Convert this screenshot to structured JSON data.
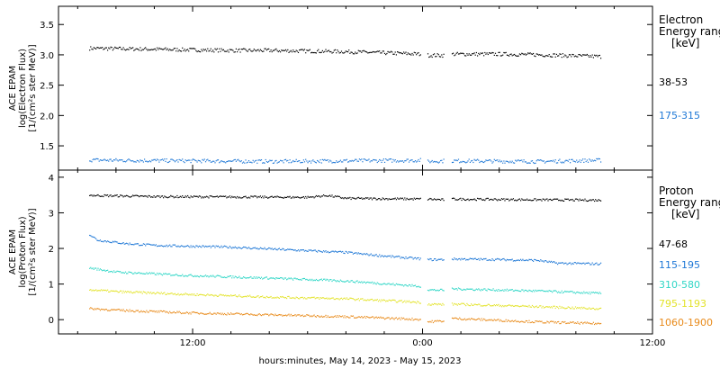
{
  "chart_data": {
    "type": "scatter",
    "xlabel": "hours:minutes, May 14, 2023 - May 15, 2023",
    "x_ticks": [
      "12:00",
      "0:00",
      "12:00"
    ],
    "xlim_hours": [
      5,
      36
    ],
    "x_tick_hours": [
      12,
      24,
      36
    ],
    "gap_hours": [
      [
        23.9,
        24.2
      ],
      [
        25.1,
        25.5
      ]
    ],
    "data_end_hour": 33.3,
    "panels": [
      {
        "id": "electron",
        "ylabel": [
          "ACE EPAM",
          "log(Electron Flux)",
          "[1/(cm²s ster MeV)]"
        ],
        "ylim": [
          1.1,
          3.8
        ],
        "yticks": [
          1.5,
          2.0,
          2.5,
          3.0,
          3.5
        ],
        "ytick_labels": [
          "1.5",
          "2.0",
          "2.5",
          "3.0",
          "3.5"
        ],
        "legend_title": [
          "Electron",
          "Energy range",
          "[keV]"
        ],
        "series": [
          {
            "name": "38-53",
            "color": "#000000",
            "x_hours": [
              5.0,
              6.0,
              8.0,
              10.0,
              12.0,
              14.0,
              16.0,
              18.0,
              20.0,
              22.0,
              23.9,
              24.2,
              25.1,
              25.5,
              28.0,
              30.0,
              33.3
            ],
            "y": [
              3.16,
              3.12,
              3.11,
              3.1,
              3.09,
              3.08,
              3.08,
              3.07,
              3.06,
              3.04,
              3.02,
              3.0,
              3.0,
              3.02,
              3.02,
              3.01,
              2.98
            ]
          },
          {
            "name": "175-315",
            "color": "#1f78d6",
            "x_hours": [
              5.0,
              8.0,
              12.0,
              16.0,
              20.0,
              23.9,
              24.2,
              25.1,
              25.5,
              30.0,
              33.3
            ],
            "y": [
              1.28,
              1.27,
              1.26,
              1.25,
              1.26,
              1.27,
              1.25,
              1.26,
              1.26,
              1.25,
              1.27
            ]
          }
        ]
      },
      {
        "id": "proton",
        "ylabel": [
          "ACE EPAM",
          "log(Proton Flux)",
          "[1/(cm²s ster MeV)]"
        ],
        "ylim": [
          -0.4,
          4.2
        ],
        "yticks": [
          0,
          1,
          2,
          3,
          4
        ],
        "ytick_labels": [
          "0",
          "1",
          "2",
          "3",
          "4"
        ],
        "legend_title": [
          "Proton",
          "Energy range",
          "[keV]"
        ],
        "series": [
          {
            "name": "47-68",
            "color": "#000000",
            "x_hours": [
              5.0,
              7.0,
              10.0,
              14.0,
              18.0,
              19.0,
              20.0,
              23.9,
              24.2,
              25.1,
              25.5,
              30.0,
              33.3
            ],
            "y": [
              3.55,
              3.5,
              3.47,
              3.46,
              3.45,
              3.5,
              3.42,
              3.4,
              3.4,
              3.38,
              3.4,
              3.38,
              3.37
            ]
          },
          {
            "name": "115-195",
            "color": "#1f78d6",
            "x_hours": [
              5.0,
              6.5,
              7.0,
              8.5,
              10.0,
              14.0,
              18.0,
              20.0,
              22.0,
              23.9,
              24.2,
              25.1,
              25.5,
              28.0,
              30.0,
              31.0,
              33.3
            ],
            "y": [
              2.55,
              2.45,
              2.25,
              2.15,
              2.1,
              2.05,
              1.95,
              1.9,
              1.8,
              1.72,
              1.7,
              1.7,
              1.72,
              1.7,
              1.68,
              1.6,
              1.58
            ]
          },
          {
            "name": "310-580",
            "color": "#2fd6c6",
            "x_hours": [
              5.0,
              8.0,
              12.0,
              16.0,
              20.0,
              23.9,
              24.2,
              25.1,
              25.5,
              30.0,
              33.3
            ],
            "y": [
              1.6,
              1.35,
              1.25,
              1.18,
              1.1,
              0.95,
              0.85,
              0.84,
              0.88,
              0.82,
              0.75
            ]
          },
          {
            "name": "795-1193",
            "color": "#e3e32a",
            "x_hours": [
              5.0,
              8.0,
              12.0,
              16.0,
              20.0,
              23.9,
              24.2,
              25.1,
              25.5,
              30.0,
              33.3
            ],
            "y": [
              0.92,
              0.8,
              0.72,
              0.65,
              0.6,
              0.5,
              0.45,
              0.44,
              0.45,
              0.38,
              0.32
            ]
          },
          {
            "name": "1060-1900",
            "color": "#e88a1a",
            "x_hours": [
              5.0,
              8.0,
              12.0,
              16.0,
              20.0,
              23.9,
              24.2,
              25.1,
              25.5,
              30.0,
              33.3
            ],
            "y": [
              0.38,
              0.28,
              0.2,
              0.15,
              0.1,
              0.02,
              -0.05,
              -0.02,
              0.05,
              -0.05,
              -0.1
            ]
          }
        ]
      }
    ]
  }
}
